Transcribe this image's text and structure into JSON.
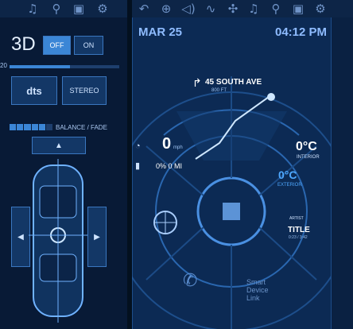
{
  "colors": {
    "accent": "#3b86d6",
    "panel": "#0c2a54",
    "background": "#0a1a33",
    "highlight": "#7fb6ff"
  },
  "toolbar_left": {
    "icons": [
      "music-note-icon",
      "map-pin-icon",
      "settings-screen-icon",
      "gear-icon"
    ]
  },
  "toolbar_right": {
    "icons": [
      "back-arrow-icon",
      "globe-icon",
      "volume-icon",
      "waveform-icon",
      "fan-icon",
      "music-note-icon",
      "map-pin-icon",
      "settings-screen-icon",
      "gear-icon"
    ]
  },
  "audio": {
    "mode_label": "3D",
    "toggle_off": "OFF",
    "toggle_on": "ON",
    "slider_label": "20",
    "dts_label": "dts",
    "stereo_label": "STEREO",
    "balance_label": "BALANCE / FADE",
    "balance_level": 0.55
  },
  "status": {
    "date": "MAR 25",
    "time": "04:12 PM"
  },
  "navigation": {
    "street": "45 SOUTH AVE",
    "distance": "800 FT"
  },
  "speed": {
    "value": "0",
    "unit": "mph"
  },
  "trip": {
    "value": "0% 0 MI"
  },
  "temperature": {
    "interior_value": "0°C",
    "interior_label": "INTERIOR",
    "exterior_value": "0°C",
    "exterior_label": "EXTERIOR"
  },
  "media": {
    "small_label": "ARTIST",
    "title": "TITLE",
    "time": "0:23 / 3:42"
  },
  "smart_device": {
    "lines": [
      "Smart",
      "Device",
      "Link"
    ]
  }
}
